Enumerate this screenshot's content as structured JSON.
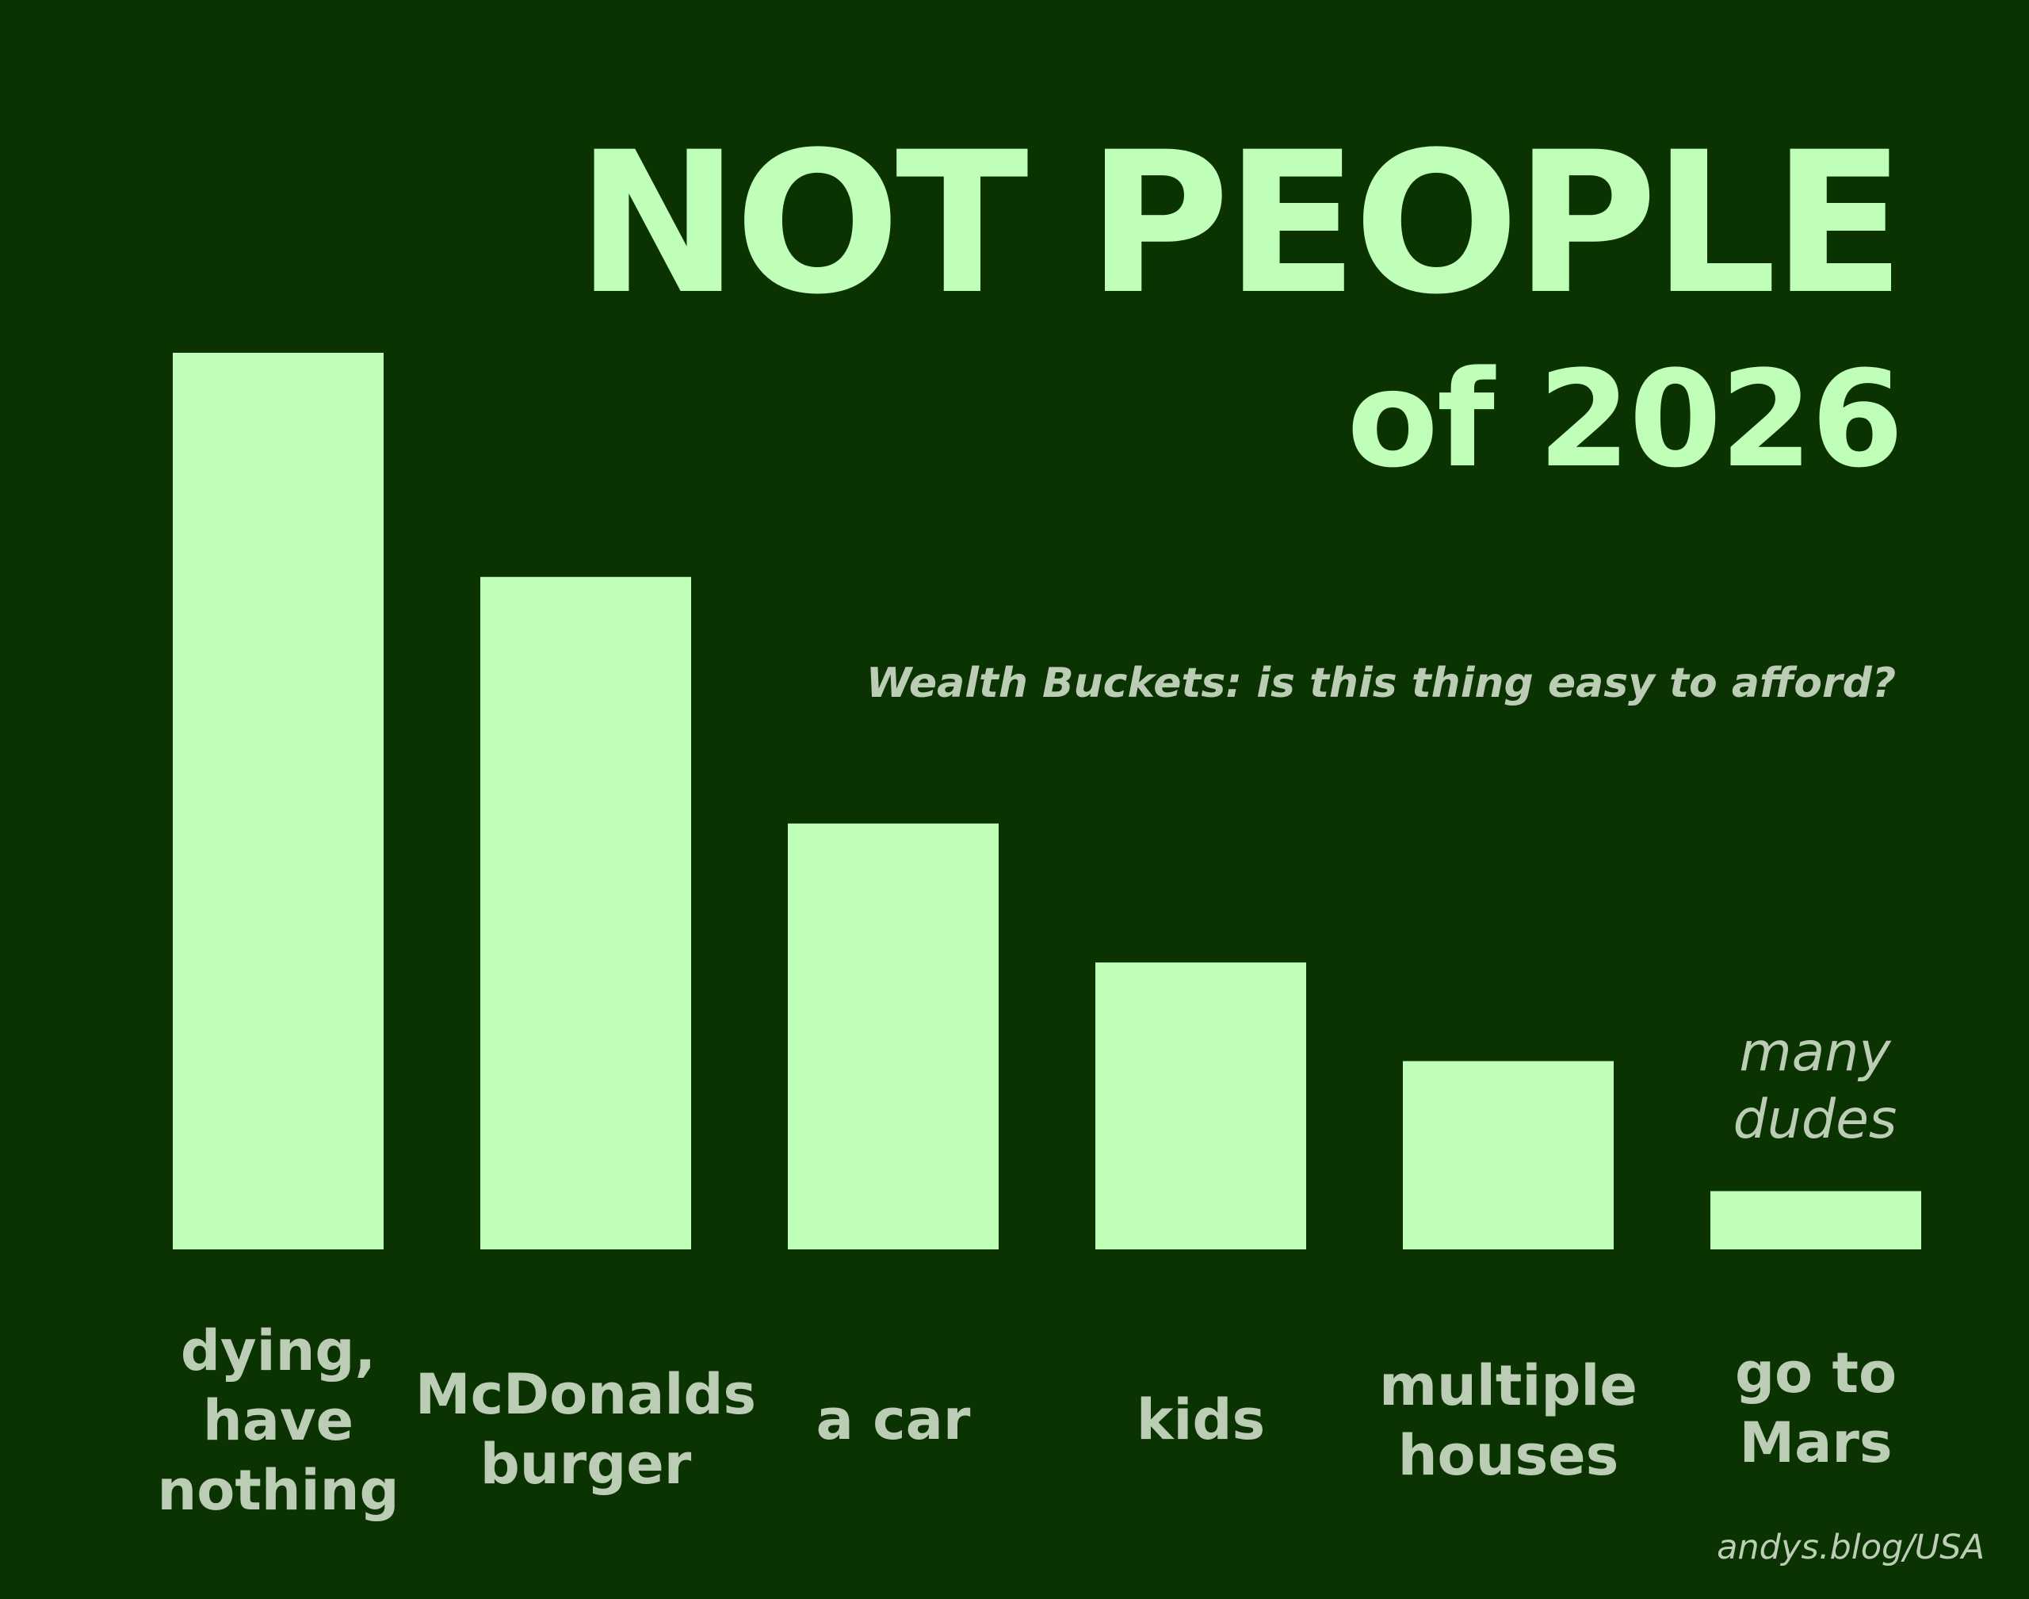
{
  "title": "NOT PEOPLE",
  "title_line2": "of 2026",
  "subtitle": "Wealth Buckets: is this thing easy to afford?",
  "annotation": "many\ndudes",
  "credit": "andys.blog/USA",
  "colors": {
    "background": "#0a3301",
    "bar": "#c0ffb8",
    "label": "#bccdb5"
  },
  "chart_data": {
    "type": "bar",
    "categories": [
      "dying,\nhave\nnothing",
      "McDonalds\nburger",
      "a car",
      "kids",
      "multiple\nhouses",
      "go to\nMars"
    ],
    "values": [
      100,
      75,
      47.5,
      32,
      21,
      6.5
    ],
    "ylim": [
      0,
      100
    ],
    "title": "NOT PEOPLE of 2026",
    "subtitle": "Wealth Buckets: is this thing easy to afford?",
    "annotations": [
      {
        "category": "go to\nMars",
        "text": "many\ndudes"
      }
    ],
    "xlabel": "",
    "ylabel": "",
    "grid": false,
    "legend": "none"
  }
}
